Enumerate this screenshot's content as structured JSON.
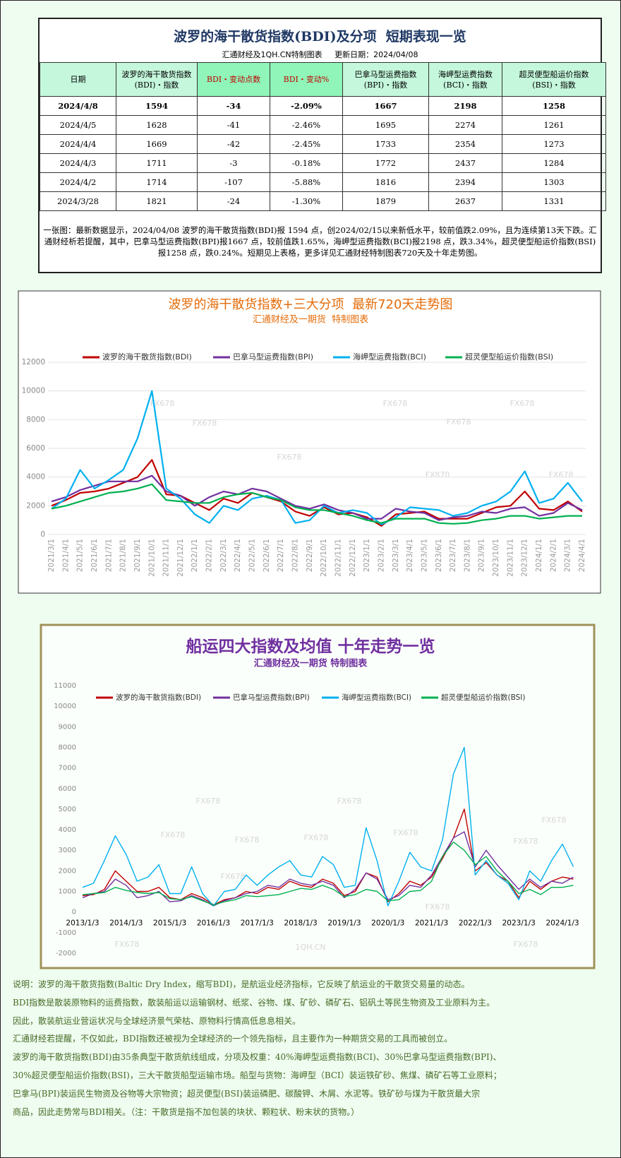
{
  "header": {
    "title": "波罗的海干散货指数(BDI)及分项  短期表现一览",
    "subtitle": "汇通财经及1QH.CN特制图表     更新日期：2024/04/08"
  },
  "table": {
    "header": [
      [
        "日期"
      ],
      [
        "波罗的海干散货指数",
        "(BDI)・指数"
      ],
      [
        "BDI・变动点数"
      ],
      [
        "BDI・变动%"
      ],
      [
        "巴拿马型运费指数",
        "(BPI)・指数"
      ],
      [
        "海岬型运费指数",
        "(BCI)・指数"
      ],
      [
        "超灵便型船运价指数",
        "(BSI)・指数"
      ]
    ],
    "rows": [
      [
        "2024/4/8",
        1594,
        -34,
        "-2.09%",
        1667,
        2198,
        1258
      ],
      [
        "2024/4/5",
        1628,
        -41,
        "-2.46%",
        1695,
        2274,
        1261
      ],
      [
        "2024/4/4",
        1669,
        -42,
        "-2.45%",
        1733,
        2354,
        1273
      ],
      [
        "2024/4/3",
        1711,
        -3,
        "-0.18%",
        1772,
        2437,
        1284
      ],
      [
        "2024/4/2",
        1714,
        -107,
        "-5.88%",
        1816,
        2394,
        1303
      ],
      [
        "2024/3/28",
        1821,
        -24,
        "-1.30%",
        1879,
        2637,
        1331
      ]
    ]
  },
  "note": "一张图：最新数据显示，2024/04/08 波罗的海干散货指数(BDI)报 1594 点，创2024/02/15以来新低水平，较前值跌2.09%，且为连续第13天下跌。汇通财经析若提醒，其中，巴拿马型运费指数(BPI)报1667 点，较前值跌1.65%，海岬型运费指数(BCI)报2198 点，跌3.34%，超灵便型船运价指数(BSI)报1258 点，跌0.24%。短期见上表格，更多详见汇通财经特制图表720天及十年走势图。",
  "watermarks": [
    "FX678",
    "FX870",
    "1QH.CN"
  ],
  "chart_data": [
    {
      "type": "line",
      "title": "波罗的海干散货指数+三大分项  最新720天走势图",
      "subtitle": "汇通财经及一期货  特制图表",
      "categories": [
        "2021/3/1",
        "2021/4/1",
        "2021/5/1",
        "2021/6/1",
        "2021/7/1",
        "2021/8/1",
        "2021/9/1",
        "2021/10/1",
        "2021/11/1",
        "2021/12/1",
        "2022/1/1",
        "2022/2/1",
        "2022/3/1",
        "2022/4/1",
        "2022/5/1",
        "2022/6/1",
        "2022/7/1",
        "2022/8/1",
        "2022/9/1",
        "2022/10/1",
        "2022/11/1",
        "2022/12/1",
        "2023/1/1",
        "2023/2/1",
        "2023/3/1",
        "2023/4/1",
        "2023/5/1",
        "2023/6/1",
        "2023/7/1",
        "2023/8/1",
        "2023/9/1",
        "2023/10/1",
        "2023/11/1",
        "2023/12/1",
        "2024/1/1",
        "2024/2/1",
        "2024/3/1",
        "2024/4/1"
      ],
      "series": [
        {
          "name": "波罗的海干散货指数(BDI)",
          "color": "#c00000",
          "values": [
            2000,
            2400,
            2900,
            3000,
            3200,
            3600,
            4000,
            5200,
            2800,
            2700,
            2200,
            1700,
            2500,
            2200,
            2900,
            2600,
            2300,
            1600,
            1300,
            1900,
            1400,
            1500,
            1200,
            600,
            1400,
            1500,
            1600,
            1100,
            1100,
            1100,
            1500,
            1900,
            2000,
            3000,
            1800,
            1700,
            2300,
            1600
          ]
        },
        {
          "name": "巴拿马型运费指数(BPI)",
          "color": "#7030a0",
          "values": [
            2300,
            2600,
            3100,
            3400,
            3700,
            3700,
            3700,
            4100,
            3000,
            2700,
            2000,
            2600,
            3000,
            2800,
            3200,
            3000,
            2500,
            2000,
            1800,
            2100,
            1700,
            1500,
            1100,
            1100,
            1800,
            1600,
            1500,
            1000,
            1200,
            1300,
            1600,
            1500,
            1800,
            1900,
            1300,
            1500,
            2200,
            1700
          ]
        },
        {
          "name": "海岬型运费指数(BCI)",
          "color": "#00b0f0",
          "values": [
            1800,
            2500,
            4500,
            3200,
            3800,
            4500,
            6700,
            10000,
            3200,
            2500,
            1400,
            800,
            2000,
            1700,
            2500,
            2700,
            2400,
            800,
            1000,
            2000,
            1500,
            1700,
            1500,
            700,
            1200,
            1900,
            1800,
            1700,
            1300,
            1500,
            2000,
            2300,
            3000,
            4400,
            2200,
            2500,
            3600,
            2300
          ]
        },
        {
          "name": "超灵便型船运价指数(BSI)",
          "color": "#00b050",
          "values": [
            1800,
            2000,
            2300,
            2600,
            2900,
            3000,
            3200,
            3500,
            2400,
            2300,
            2200,
            2200,
            2600,
            2800,
            2900,
            2600,
            2400,
            1900,
            1700,
            1700,
            1500,
            1300,
            1000,
            800,
            1100,
            1100,
            1100,
            800,
            750,
            800,
            1000,
            1100,
            1300,
            1300,
            1100,
            1200,
            1300,
            1300
          ]
        }
      ],
      "ylim": [
        0,
        12000
      ],
      "yticks": [
        0,
        2000,
        4000,
        6000,
        8000,
        10000,
        12000
      ],
      "grid": true
    },
    {
      "type": "line",
      "title": "船运四大指数及均值 十年走势一览",
      "subtitle": "汇通财经及一期货 特制图表",
      "x": [
        "2013/1/3",
        "2013/4/3",
        "2013/7/3",
        "2013/10/3",
        "2014/1/3",
        "2014/4/3",
        "2014/7/3",
        "2014/10/3",
        "2015/1/3",
        "2015/4/3",
        "2015/7/3",
        "2015/10/3",
        "2016/1/3",
        "2016/4/3",
        "2016/7/3",
        "2016/10/3",
        "2017/1/3",
        "2017/4/3",
        "2017/7/3",
        "2017/10/3",
        "2018/1/3",
        "2018/4/3",
        "2018/7/3",
        "2018/10/3",
        "2019/1/3",
        "2019/4/3",
        "2019/7/3",
        "2019/10/3",
        "2020/1/3",
        "2020/4/3",
        "2020/7/3",
        "2020/10/3",
        "2021/1/3",
        "2021/4/3",
        "2021/7/3",
        "2021/10/3",
        "2022/1/3",
        "2022/4/3",
        "2022/7/3",
        "2022/10/3",
        "2023/1/3",
        "2023/4/3",
        "2023/7/3",
        "2023/10/3",
        "2024/1/3",
        "2024/4/3"
      ],
      "xticks": [
        "2013/1/3",
        "2014/1/3",
        "2015/1/3",
        "2016/1/3",
        "2017/1/3",
        "2018/1/3",
        "2019/1/3",
        "2020/1/3",
        "2021/1/3",
        "2022/1/3",
        "2023/1/3",
        "2024/1/3"
      ],
      "series": [
        {
          "name": "波罗的海干散货指数(BDI)",
          "color": "#c00000",
          "values": [
            800,
            850,
            1100,
            2000,
            1500,
            1000,
            1000,
            1200,
            700,
            600,
            900,
            700,
            350,
            600,
            700,
            1000,
            900,
            1200,
            1100,
            1500,
            1300,
            1200,
            1600,
            1400,
            800,
            1000,
            1900,
            1700,
            500,
            900,
            1500,
            1300,
            1700,
            2600,
            3600,
            5000,
            2000,
            2400,
            1800,
            1500,
            700,
            1500,
            1100,
            1500,
            1700,
            1600
          ]
        },
        {
          "name": "巴拿马型运费指数(BPI)",
          "color": "#7030a0",
          "values": [
            700,
            900,
            1000,
            1600,
            1300,
            700,
            800,
            1000,
            500,
            550,
            800,
            600,
            300,
            550,
            700,
            900,
            1000,
            1300,
            1200,
            1600,
            1400,
            1300,
            1500,
            1300,
            700,
            1100,
            1900,
            1600,
            600,
            800,
            1300,
            1200,
            1800,
            2700,
            3600,
            3900,
            2200,
            3000,
            2300,
            1700,
            1100,
            1600,
            1200,
            1500,
            1400,
            1700
          ]
        },
        {
          "name": "海岬型运费指数(BCI)",
          "color": "#00b0f0",
          "values": [
            1200,
            1400,
            2500,
            3700,
            2800,
            1500,
            1700,
            2300,
            900,
            900,
            2200,
            900,
            300,
            1000,
            1100,
            1800,
            1300,
            1800,
            2200,
            2500,
            1800,
            1700,
            2700,
            2300,
            1200,
            1300,
            4100,
            2500,
            300,
            1500,
            2900,
            2200,
            2000,
            3500,
            6700,
            8000,
            1800,
            2500,
            1800,
            1400,
            600,
            2000,
            1500,
            2500,
            3300,
            2200
          ]
        },
        {
          "name": "超灵便型船运价指数(BSI)",
          "color": "#00b050",
          "values": [
            850,
            900,
            950,
            1200,
            1050,
            950,
            900,
            950,
            650,
            600,
            750,
            550,
            350,
            500,
            600,
            800,
            750,
            800,
            850,
            1000,
            1150,
            1100,
            1300,
            1100,
            750,
            850,
            1100,
            1000,
            550,
            600,
            1000,
            1050,
            1500,
            2700,
            3400,
            3000,
            2300,
            2700,
            2000,
            1500,
            900,
            1100,
            850,
            1200,
            1200,
            1300
          ]
        }
      ],
      "ylim": [
        -2000,
        11000
      ],
      "yticks": [
        -2000,
        -1000,
        0,
        1000,
        2000,
        3000,
        4000,
        5000,
        6000,
        7000,
        8000,
        9000,
        10000,
        11000
      ],
      "grid": false
    }
  ],
  "footer": [
    "说明：波罗的海干散货指数(Baltic Dry Index，缩写BDI)，是航运业经济指标，它反映了航运业的干散货交易量的动态。",
    "BDI指数是散装原物料的运费指数，散装船运以运输钢材、纸浆、谷物、煤、矿砂、磷矿石、铝矾土等民生物资及工业原料为主。",
    "因此，散装航运业营运状况与全球经济景气荣枯、原物料行情高低息息相关。",
    "汇通财经若提醒，不仅如此，BDI指数还被视为全球经济的一个领先指标，且主要作为一种期货交易的工具而被创立。",
    "波罗的海干散货指数(BDI)由35条典型干散货航线组成，分项及权重：40%海岬型运费指数(BCI)、30%巴拿马型运费指数(BPI)、",
    "30%超灵便型船运价指数(BSI)，三大干散货船型运输市场。船型与货物：海岬型（BCI）装运铁矿砂、焦煤、磷矿石等工业原料；",
    "巴拿马(BPI)装运民生物资及谷物等大宗物资；超灵便型(BSI)装运磷肥、碳酸钾、木屑、水泥等。铁矿砂与煤为干散货最大宗",
    "商品，因此走势常与BDI相关。（注：干散货是指不加包装的块状、颗粒状、粉末状的货物。）"
  ]
}
